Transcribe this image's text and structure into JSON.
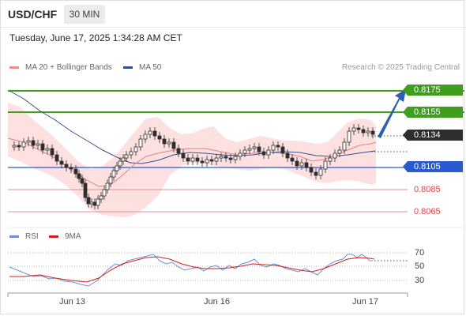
{
  "header": {
    "pair": "USD/CHF",
    "timeframe": "30 MIN",
    "datetime": "Tuesday, June 17, 2025 1:34:28 AM CET"
  },
  "legend": {
    "ma20": "MA 20 + Bollinger Bands",
    "ma50": "MA 50",
    "copyright": "Research © 2025 Trading Central",
    "rsi": "RSI",
    "rsi_ma": "9MA"
  },
  "levels": {
    "resistance_2": "0.8175",
    "resistance_1": "0.8155",
    "last_price": "0.8134",
    "pivot": "0.8105",
    "support_1": "0.8085",
    "support_2": "0.8065"
  },
  "rsi_ticks": [
    "70",
    "50",
    "30"
  ],
  "x_axis": [
    "Jun 13",
    "Jun 16",
    "Jun 17"
  ],
  "colors": {
    "green": "#3f9e1c",
    "blue": "#2a5ad0",
    "red": "#d94848",
    "bollinger": "#f9c9c9",
    "ma20": "#e88080",
    "ma50": "#3a4f8c",
    "arrow": "#2f5fae",
    "candle_up": "#2e2e2e",
    "candle_down": "#2e2e2e"
  }
}
